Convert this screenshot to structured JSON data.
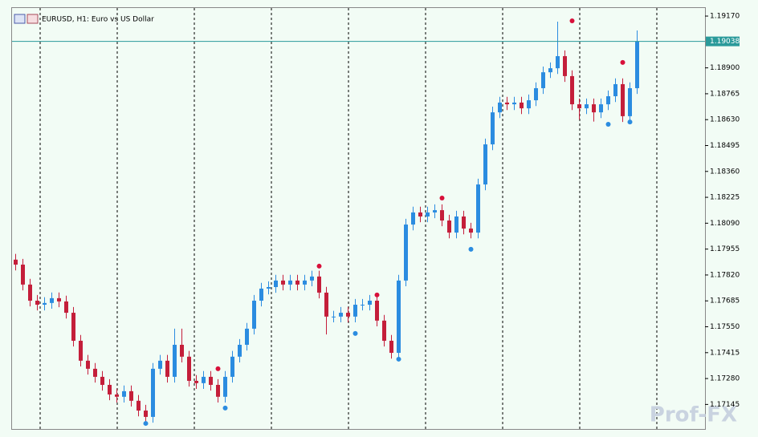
{
  "chart_data": {
    "type": "candlestick",
    "title": "EURUSD, H1:  Euro vs US Dollar",
    "ylim": [
      1.17017,
      1.19212
    ],
    "yticks": [
      {
        "value": 1.1917,
        "label": "1.19170"
      },
      {
        "value": 1.189,
        "label": "1.18900"
      },
      1.18765,
      {
        "value": 1.1863,
        "label": "1.18630"
      },
      1.18495,
      {
        "value": 1.1836,
        "label": "1.18360"
      },
      1.18225,
      {
        "value": 1.1809,
        "label": "1.18090"
      },
      1.17955,
      {
        "value": 1.1782,
        "label": "1.17820"
      },
      1.17685,
      {
        "value": 1.1755,
        "label": "1.17550"
      },
      1.17415,
      {
        "value": 1.1728,
        "label": "1.17280"
      },
      1.17145
    ],
    "current_price": 1.19038,
    "up_color": "#2b8ce0",
    "down_color": "#c41e3a",
    "price_line_color": "#2a9a9a",
    "open": [
      1.179,
      1.17874,
      1.1777,
      1.17686,
      1.17665,
      1.17674,
      1.17699,
      1.17682,
      1.17623,
      1.17477,
      1.17373,
      1.17331,
      1.17289,
      1.17247,
      1.17197,
      1.17185,
      1.17214,
      1.17164,
      1.17113,
      1.1708,
      1.17331,
      1.17373,
      1.17289,
      1.17456,
      1.17394,
      1.17268,
      1.17256,
      1.17289,
      1.17247,
      1.17185,
      1.17289,
      1.17394,
      1.17456,
      1.1754,
      1.17686,
      1.17749,
      1.17757,
      1.17791,
      1.1777,
      1.17791,
      1.1777,
      1.17791,
      1.17812,
      1.17728,
      1.17603,
      1.17603,
      1.17623,
      1.17603,
      1.17665,
      1.17665,
      1.17686,
      1.17582,
      1.17477,
      1.17414,
      1.17791,
      1.18083,
      1.18146,
      1.18125,
      1.18146,
      1.18158,
      1.18104,
      1.18041,
      1.18125,
      1.18062,
      1.18041,
      1.18292,
      1.18501,
      1.18668,
      1.18719,
      1.1871,
      1.18719,
      1.18689,
      1.18731,
      1.18794,
      1.18877,
      1.18898,
      1.18961,
      1.18857,
      1.1871,
      1.18689,
      1.1871,
      1.18668,
      1.1871,
      1.18752,
      1.18815,
      1.18648,
      1.18794
    ],
    "high": [
      1.1793,
      1.17904,
      1.178,
      1.17716,
      1.17704,
      1.17729,
      1.17729,
      1.17712,
      1.17653,
      1.17507,
      1.17403,
      1.17361,
      1.17319,
      1.17277,
      1.17227,
      1.17244,
      1.17244,
      1.17194,
      1.17143,
      1.17361,
      1.17403,
      1.17403,
      1.1754,
      1.1754,
      1.17424,
      1.17298,
      1.17319,
      1.17319,
      1.17277,
      1.17319,
      1.17424,
      1.17486,
      1.1757,
      1.17716,
      1.17779,
      1.17787,
      1.17821,
      1.17821,
      1.17821,
      1.17821,
      1.17821,
      1.17842,
      1.17842,
      1.17758,
      1.17633,
      1.17653,
      1.17653,
      1.17695,
      1.17695,
      1.17716,
      1.17716,
      1.17612,
      1.17507,
      1.17821,
      1.18113,
      1.18176,
      1.18176,
      1.18176,
      1.18188,
      1.18188,
      1.18134,
      1.18155,
      1.18155,
      1.18092,
      1.18322,
      1.18531,
      1.18698,
      1.18749,
      1.18749,
      1.18749,
      1.18749,
      1.18761,
      1.18824,
      1.18907,
      1.18928,
      1.19141,
      1.18991,
      1.18887,
      1.1874,
      1.1874,
      1.1874,
      1.1874,
      1.18782,
      1.18845,
      1.18845,
      1.18824,
      1.19095
    ],
    "low": [
      1.17844,
      1.1774,
      1.17656,
      1.17635,
      1.17635,
      1.17644,
      1.17652,
      1.17593,
      1.17447,
      1.17343,
      1.17301,
      1.17259,
      1.17217,
      1.17167,
      1.17155,
      1.17155,
      1.17134,
      1.17083,
      1.1705,
      1.1705,
      1.17301,
      1.17259,
      1.17259,
      1.17364,
      1.17238,
      1.17226,
      1.17226,
      1.17217,
      1.17155,
      1.17155,
      1.17259,
      1.17364,
      1.17426,
      1.1751,
      1.17656,
      1.17719,
      1.17727,
      1.1774,
      1.1774,
      1.1774,
      1.1774,
      1.17761,
      1.17698,
      1.1751,
      1.17573,
      1.17573,
      1.17573,
      1.17573,
      1.17635,
      1.17635,
      1.17552,
      1.17447,
      1.17384,
      1.17384,
      1.17761,
      1.18053,
      1.18095,
      1.18095,
      1.18116,
      1.18074,
      1.18011,
      1.18011,
      1.18032,
      1.18011,
      1.18011,
      1.18262,
      1.18471,
      1.18638,
      1.1868,
      1.1868,
      1.18659,
      1.18659,
      1.18701,
      1.18764,
      1.18847,
      1.18868,
      1.18827,
      1.1868,
      1.1863,
      1.18659,
      1.1862,
      1.18638,
      1.1868,
      1.18722,
      1.18618,
      1.18618,
      1.18764
    ],
    "close": [
      1.17874,
      1.1777,
      1.17686,
      1.17665,
      1.17674,
      1.17699,
      1.17682,
      1.17623,
      1.17477,
      1.17373,
      1.17331,
      1.17289,
      1.17247,
      1.17197,
      1.17185,
      1.17214,
      1.17164,
      1.17113,
      1.1708,
      1.17331,
      1.17373,
      1.17289,
      1.17456,
      1.17394,
      1.17268,
      1.17256,
      1.17289,
      1.17247,
      1.17185,
      1.17289,
      1.17394,
      1.17456,
      1.1754,
      1.17686,
      1.17749,
      1.17757,
      1.17791,
      1.1777,
      1.17791,
      1.1777,
      1.17791,
      1.17812,
      1.17728,
      1.17603,
      1.17603,
      1.17623,
      1.17603,
      1.17665,
      1.17665,
      1.17686,
      1.17582,
      1.17477,
      1.17414,
      1.17791,
      1.18083,
      1.18146,
      1.18125,
      1.18146,
      1.18158,
      1.18104,
      1.18041,
      1.18125,
      1.18062,
      1.18041,
      1.18292,
      1.18501,
      1.18668,
      1.18719,
      1.1871,
      1.18719,
      1.18689,
      1.18731,
      1.18794,
      1.18877,
      1.18898,
      1.18961,
      1.18857,
      1.1871,
      1.18689,
      1.1871,
      1.18668,
      1.1871,
      1.18752,
      1.18815,
      1.18648,
      1.18794,
      1.19038
    ],
    "up_fractals": {
      "color": "#d8103a",
      "index": [
        28,
        42,
        50,
        59,
        77,
        84
      ],
      "values": [
        1.17331,
        1.17866,
        1.17716,
        1.18221,
        1.19145,
        1.18928
      ]
    },
    "down_fractals": {
      "color": "#2b8ce0",
      "index": [
        18,
        29,
        47,
        53,
        63,
        82,
        85
      ],
      "values": [
        1.17046,
        1.17126,
        1.17515,
        1.17381,
        1.17954,
        1.18606,
        1.18618
      ]
    },
    "watermark": "Prof-FX"
  }
}
